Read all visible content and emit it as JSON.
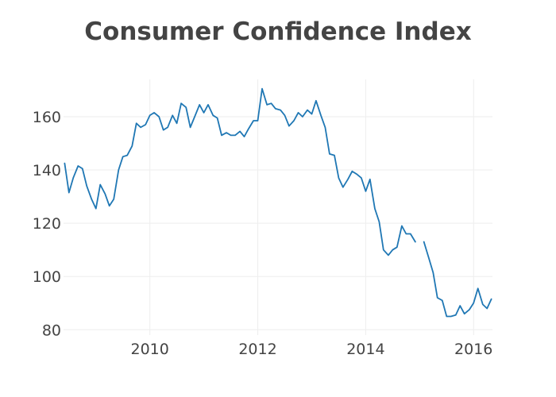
{
  "chart_data": {
    "type": "line",
    "title": "Consumer Confidence Index",
    "xlabel": "",
    "ylabel": "",
    "xlim": [
      2008.4,
      2016.35
    ],
    "ylim": [
      78,
      174
    ],
    "x_ticks": [
      {
        "value": 2010,
        "label": "2010"
      },
      {
        "value": 2012,
        "label": "2012"
      },
      {
        "value": 2014,
        "label": "2014"
      },
      {
        "value": 2016,
        "label": "2016"
      }
    ],
    "y_ticks": [
      {
        "value": 80,
        "label": "80"
      },
      {
        "value": 100,
        "label": "100"
      },
      {
        "value": 120,
        "label": "120"
      },
      {
        "value": 140,
        "label": "140"
      },
      {
        "value": 160,
        "label": "160"
      }
    ],
    "grid": true,
    "legend": "none",
    "series_color": "#1f77b4",
    "series": [
      {
        "points": [
          [
            2008.42,
            142.5
          ],
          [
            2008.5,
            131.5
          ],
          [
            2008.58,
            137.0
          ],
          [
            2008.67,
            141.5
          ],
          [
            2008.75,
            140.5
          ],
          [
            2008.83,
            134.0
          ],
          [
            2008.92,
            129.0
          ],
          [
            2009.0,
            125.5
          ],
          [
            2009.08,
            134.5
          ],
          [
            2009.17,
            131.0
          ],
          [
            2009.25,
            126.5
          ],
          [
            2009.33,
            129.0
          ],
          [
            2009.42,
            140.0
          ],
          [
            2009.5,
            145.0
          ],
          [
            2009.58,
            145.5
          ],
          [
            2009.67,
            149.0
          ],
          [
            2009.75,
            157.5
          ],
          [
            2009.83,
            156.0
          ],
          [
            2009.92,
            157.0
          ],
          [
            2010.0,
            160.5
          ],
          [
            2010.08,
            161.5
          ],
          [
            2010.17,
            160.0
          ],
          [
            2010.25,
            155.0
          ],
          [
            2010.33,
            156.0
          ],
          [
            2010.42,
            160.5
          ],
          [
            2010.5,
            157.5
          ],
          [
            2010.58,
            165.0
          ],
          [
            2010.67,
            163.5
          ],
          [
            2010.75,
            156.0
          ],
          [
            2010.83,
            160.0
          ],
          [
            2010.92,
            164.5
          ],
          [
            2011.0,
            161.5
          ],
          [
            2011.08,
            164.5
          ],
          [
            2011.17,
            160.5
          ],
          [
            2011.25,
            159.5
          ],
          [
            2011.33,
            153.0
          ],
          [
            2011.42,
            154.0
          ],
          [
            2011.5,
            153.0
          ],
          [
            2011.58,
            153.0
          ],
          [
            2011.67,
            154.5
          ],
          [
            2011.75,
            152.5
          ],
          [
            2011.83,
            155.5
          ],
          [
            2011.92,
            158.5
          ],
          [
            2012.0,
            158.5
          ],
          [
            2012.08,
            170.5
          ],
          [
            2012.17,
            164.5
          ],
          [
            2012.25,
            165.0
          ],
          [
            2012.33,
            163.0
          ],
          [
            2012.42,
            162.5
          ],
          [
            2012.5,
            160.5
          ],
          [
            2012.58,
            156.5
          ],
          [
            2012.67,
            158.5
          ],
          [
            2012.75,
            161.5
          ],
          [
            2012.83,
            160.0
          ],
          [
            2012.92,
            162.5
          ],
          [
            2013.0,
            161.0
          ],
          [
            2013.08,
            166.0
          ],
          [
            2013.17,
            160.5
          ],
          [
            2013.25,
            156.0
          ],
          [
            2013.33,
            146.0
          ],
          [
            2013.42,
            145.5
          ],
          [
            2013.5,
            137.0
          ],
          [
            2013.58,
            133.5
          ],
          [
            2013.67,
            136.5
          ],
          [
            2013.75,
            139.5
          ],
          [
            2013.83,
            138.5
          ],
          [
            2013.92,
            137.0
          ],
          [
            2014.0,
            132.0
          ],
          [
            2014.08,
            136.5
          ],
          [
            2014.17,
            125.5
          ],
          [
            2014.25,
            120.5
          ],
          [
            2014.33,
            110.0
          ],
          [
            2014.42,
            108.0
          ],
          [
            2014.5,
            110.0
          ],
          [
            2014.58,
            111.0
          ],
          [
            2014.67,
            119.0
          ],
          [
            2014.75,
            116.0
          ],
          [
            2014.83,
            116.0
          ],
          [
            2014.92,
            113.0
          ]
        ]
      },
      {
        "points": [
          [
            2015.08,
            113.0
          ],
          [
            2015.17,
            107.0
          ],
          [
            2015.25,
            101.5
          ],
          [
            2015.33,
            92.0
          ],
          [
            2015.42,
            91.0
          ],
          [
            2015.5,
            85.0
          ],
          [
            2015.58,
            85.0
          ],
          [
            2015.67,
            85.5
          ],
          [
            2015.75,
            89.0
          ],
          [
            2015.83,
            86.0
          ],
          [
            2015.92,
            87.5
          ],
          [
            2016.0,
            90.0
          ],
          [
            2016.08,
            95.5
          ],
          [
            2016.17,
            89.5
          ],
          [
            2016.25,
            88.0
          ],
          [
            2016.33,
            91.5
          ]
        ]
      }
    ]
  }
}
